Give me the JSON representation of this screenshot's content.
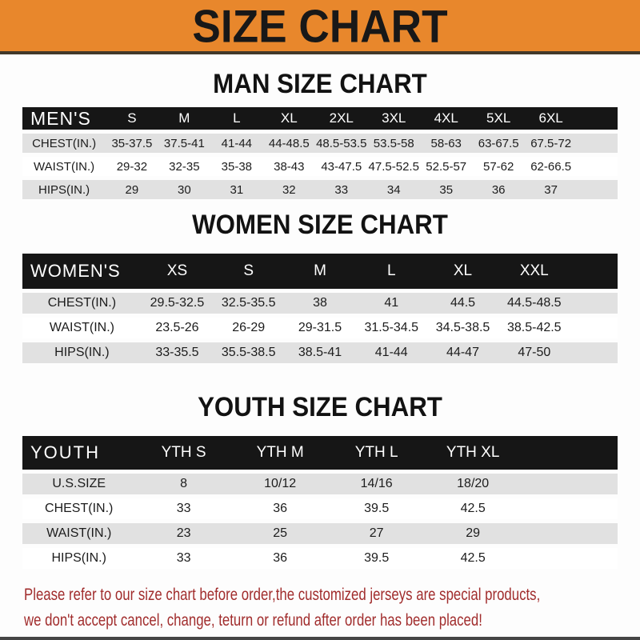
{
  "banner": {
    "title": "SIZE CHART"
  },
  "sections": [
    {
      "title": "MAN SIZE CHART",
      "header_label": "MEN'S",
      "columns": [
        "S",
        "M",
        "L",
        "XL",
        "2XL",
        "3XL",
        "4XL",
        "5XL",
        "6XL"
      ],
      "rows": [
        {
          "label": "CHEST(IN.)",
          "values": [
            "35-37.5",
            "37.5-41",
            "41-44",
            "44-48.5",
            "48.5-53.5",
            "53.5-58",
            "58-63",
            "63-67.5",
            "67.5-72"
          ]
        },
        {
          "label": "WAIST(IN.)",
          "values": [
            "29-32",
            "32-35",
            "35-38",
            "38-43",
            "43-47.5",
            "47.5-52.5",
            "52.5-57",
            "57-62",
            "62-66.5"
          ]
        },
        {
          "label": "HIPS(IN.)",
          "values": [
            "29",
            "30",
            "31",
            "32",
            "33",
            "34",
            "35",
            "36",
            "37"
          ]
        }
      ]
    },
    {
      "title": "WOMEN SIZE CHART",
      "header_label": "WOMEN'S",
      "columns": [
        "XS",
        "S",
        "M",
        "L",
        "XL",
        "XXL"
      ],
      "rows": [
        {
          "label": "CHEST(IN.)",
          "values": [
            "29.5-32.5",
            "32.5-35.5",
            "38",
            "41",
            "44.5",
            "44.5-48.5"
          ]
        },
        {
          "label": "WAIST(IN.)",
          "values": [
            "23.5-26",
            "26-29",
            "29-31.5",
            "31.5-34.5",
            "34.5-38.5",
            "38.5-42.5"
          ]
        },
        {
          "label": "HIPS(IN.)",
          "values": [
            "33-35.5",
            "35.5-38.5",
            "38.5-41",
            "41-44",
            "44-47",
            "47-50"
          ]
        }
      ]
    },
    {
      "title": "YOUTH SIZE CHART",
      "header_label": "YOUTH",
      "columns": [
        "YTH S",
        "YTH M",
        "YTH L",
        "YTH XL"
      ],
      "rows": [
        {
          "label": "U.S.SIZE",
          "values": [
            "8",
            "10/12",
            "14/16",
            "18/20"
          ]
        },
        {
          "label": "CHEST(IN.)",
          "values": [
            "33",
            "36",
            "39.5",
            "42.5"
          ]
        },
        {
          "label": "WAIST(IN.)",
          "values": [
            "23",
            "25",
            "27",
            "29"
          ]
        },
        {
          "label": "HIPS(IN.)",
          "values": [
            "33",
            "36",
            "39.5",
            "42.5"
          ]
        }
      ]
    }
  ],
  "footer": {
    "line1": "Please refer to our size chart before order,the customized jerseys are special products,",
    "line2": "we don't accept cancel, change, teturn or refund after order has been placed!"
  },
  "colors": {
    "banner_bg": "#E8872C",
    "header_bg": "#161616",
    "row_gray": "#E1E1E1",
    "note_red": "#A12D2D"
  }
}
